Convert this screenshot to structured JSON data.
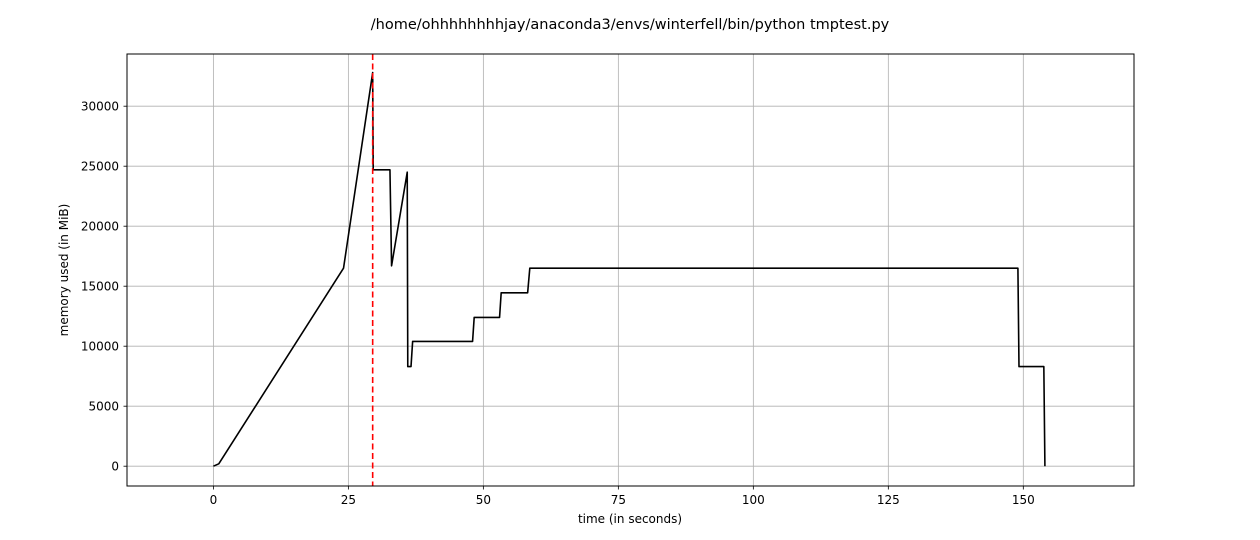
{
  "chart_data": {
    "type": "line",
    "title": "/home/ohhhhhhhhjay/anaconda3/envs/winterfell/bin/python tmptest.py",
    "xlabel": "time (in seconds)",
    "ylabel": "memory used (in MiB)",
    "xlim": [
      -16,
      170.5
    ],
    "ylim": [
      -1650,
      34350
    ],
    "xticks": [
      0,
      25,
      50,
      75,
      100,
      125,
      150
    ],
    "yticks": [
      0,
      5000,
      10000,
      15000,
      20000,
      25000,
      30000
    ],
    "grid": true,
    "series": [
      {
        "color": "#000000",
        "x": [
          0,
          1,
          24.1,
          29.5,
          29.6,
          32.7,
          33.0,
          35.9,
          36.0,
          36.1,
          36.6,
          36.9,
          48.0,
          48.3,
          53.0,
          53.3,
          58.2,
          58.6,
          149.0,
          149.2,
          153.8,
          154.0
        ],
        "y": [
          0,
          200,
          16500,
          32800,
          24700,
          24700,
          16700,
          24500,
          8300,
          8300,
          8300,
          10400,
          10400,
          12400,
          12400,
          14450,
          14450,
          16500,
          16500,
          8300,
          8300,
          0
        ]
      }
    ],
    "vlines": [
      {
        "x": 29.5,
        "color": "#ff0000",
        "style": "dashed"
      }
    ]
  }
}
